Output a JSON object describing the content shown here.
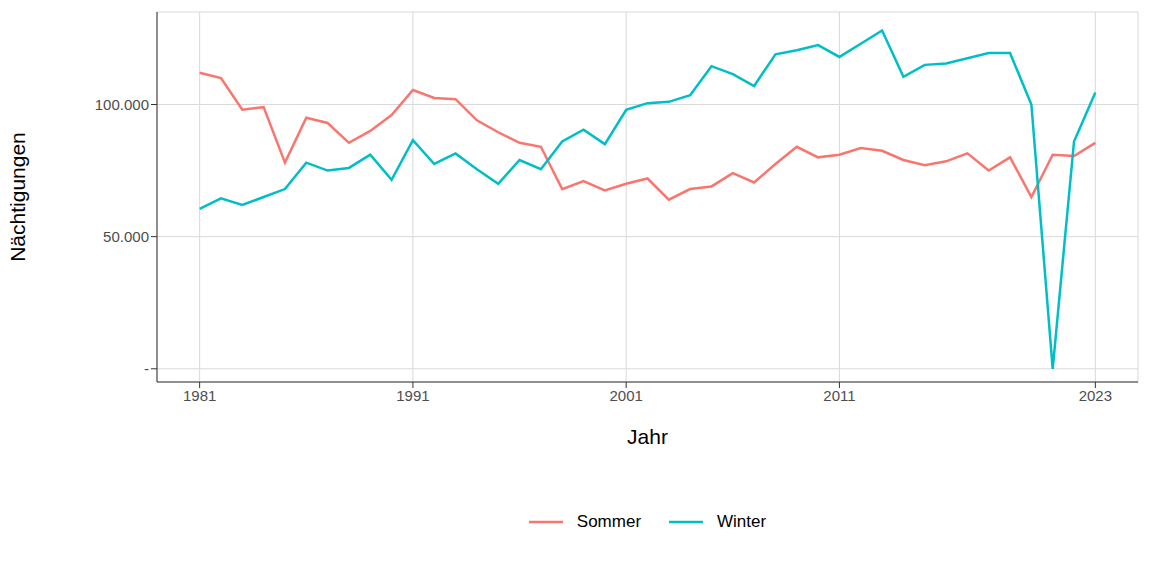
{
  "chart_data": {
    "type": "line",
    "xlabel": "Jahr",
    "ylabel": "Nächtigungen",
    "x": [
      1981,
      1982,
      1983,
      1984,
      1985,
      1986,
      1987,
      1988,
      1989,
      1990,
      1991,
      1992,
      1993,
      1994,
      1995,
      1996,
      1997,
      1998,
      1999,
      2000,
      2001,
      2002,
      2003,
      2004,
      2005,
      2006,
      2007,
      2008,
      2009,
      2010,
      2011,
      2012,
      2013,
      2014,
      2015,
      2016,
      2017,
      2018,
      2019,
      2020,
      2021,
      2022,
      2023
    ],
    "series": [
      {
        "name": "Sommer",
        "color": "#F8766D",
        "values": [
          112000,
          110000,
          98000,
          99000,
          78000,
          95000,
          93000,
          85500,
          90000,
          96000,
          105500,
          102500,
          102000,
          94000,
          89500,
          85500,
          84000,
          68000,
          71000,
          67500,
          70000,
          72000,
          64000,
          68000,
          69000,
          74000,
          70500,
          77500,
          84000,
          80000,
          81000,
          83500,
          82500,
          79000,
          77000,
          78500,
          81500,
          75000,
          80000,
          65000,
          81000,
          80500,
          85500
        ]
      },
      {
        "name": "Winter",
        "color": "#00BFC4",
        "values": [
          60500,
          64500,
          62000,
          65000,
          68000,
          78000,
          75000,
          76000,
          81000,
          71500,
          86500,
          77500,
          81500,
          75500,
          70000,
          79000,
          75500,
          86000,
          90500,
          85000,
          98000,
          100500,
          101000,
          103500,
          114500,
          111500,
          107000,
          119000,
          120500,
          122500,
          118000,
          123000,
          128000,
          110500,
          115000,
          115500,
          117500,
          119500,
          119500,
          100000,
          0,
          86000,
          104500
        ]
      }
    ],
    "xlim": [
      1979,
      2025
    ],
    "xticks": [
      1981,
      1991,
      2001,
      2011,
      2023
    ],
    "ylim": [
      -5000,
      135000
    ],
    "yticks": [
      {
        "value": 0,
        "label": "-"
      },
      {
        "value": 50000,
        "label": "50.000"
      },
      {
        "value": 100000,
        "label": "100.000"
      }
    ],
    "grid": true,
    "legend": "bottom"
  }
}
